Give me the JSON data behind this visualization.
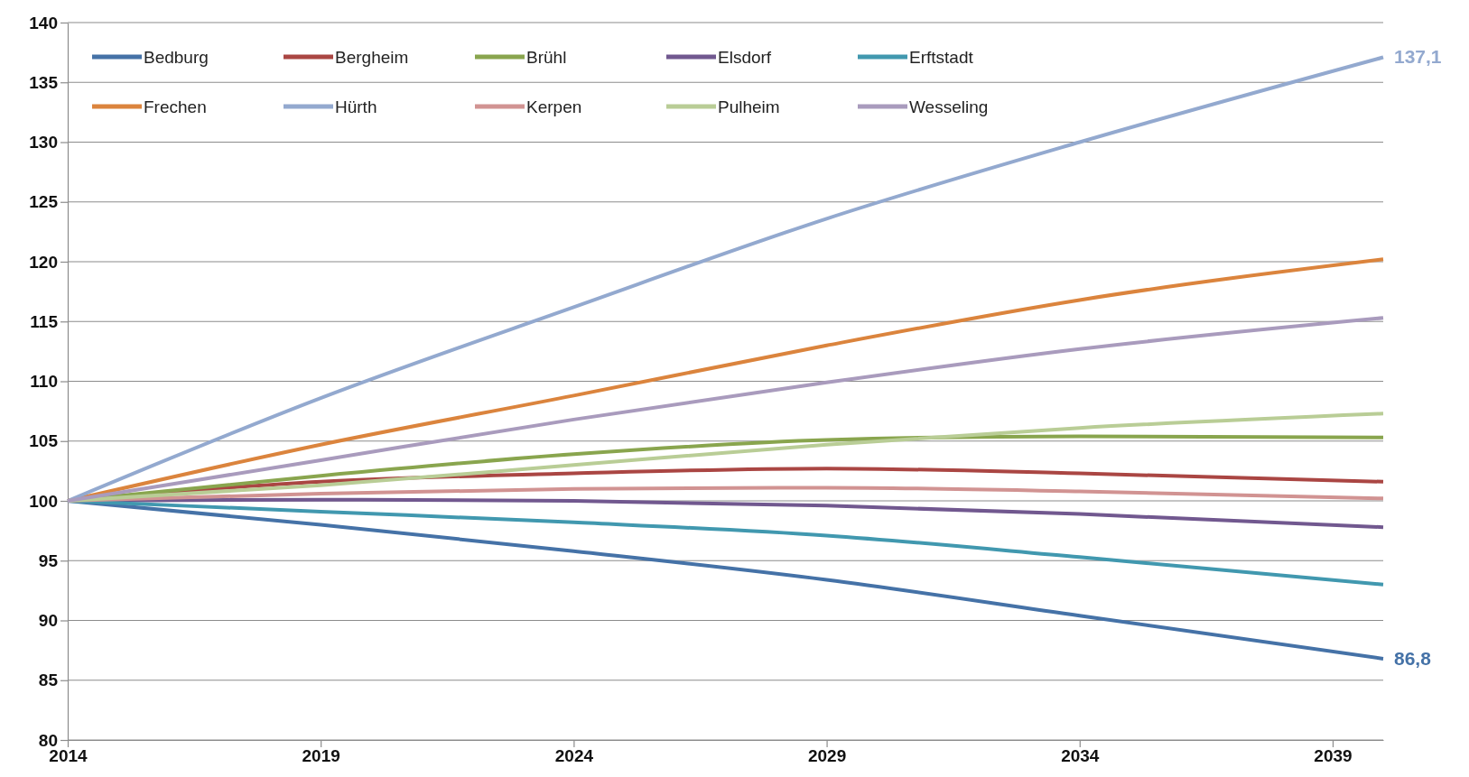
{
  "chart_data": {
    "type": "line",
    "xlim": [
      2014,
      2040
    ],
    "xticks": [
      2014,
      2019,
      2024,
      2029,
      2034,
      2039
    ],
    "ylim": [
      80,
      140
    ],
    "yticks": [
      80,
      85,
      90,
      95,
      100,
      105,
      110,
      115,
      120,
      125,
      130,
      135,
      140
    ],
    "grid": "y",
    "legend": "top left",
    "marker": "none",
    "line_style": "solid",
    "x": [
      2014,
      2019,
      2024,
      2029,
      2034,
      2040
    ],
    "series": [
      {
        "name": "Bedburg",
        "color": "#4572a7",
        "values": [
          100,
          98,
          95.8,
          93.4,
          90.4,
          86.8
        ]
      },
      {
        "name": "Bergheim",
        "color": "#aa4643",
        "values": [
          100,
          101.6,
          102.3,
          102.7,
          102.3,
          101.6
        ]
      },
      {
        "name": "Brühl",
        "color": "#89a54e",
        "values": [
          100,
          102.1,
          103.9,
          105.1,
          105.4,
          105.3
        ]
      },
      {
        "name": "Elsdorf",
        "color": "#71588f",
        "values": [
          100,
          100.1,
          100,
          99.6,
          98.9,
          97.8
        ]
      },
      {
        "name": "Erftstadt",
        "color": "#4198af",
        "values": [
          100,
          99.1,
          98.2,
          97.1,
          95.3,
          93
        ]
      },
      {
        "name": "Frechen",
        "color": "#db843d",
        "values": [
          100,
          104.7,
          108.8,
          113,
          116.8,
          120.2
        ]
      },
      {
        "name": "Hürth",
        "color": "#93a9cf",
        "values": [
          100,
          108.6,
          116.2,
          123.6,
          130,
          137.1
        ]
      },
      {
        "name": "Kerpen",
        "color": "#d19392",
        "values": [
          100,
          100.6,
          101,
          101.1,
          100.8,
          100.2
        ]
      },
      {
        "name": "Pulheim",
        "color": "#b9cd96",
        "values": [
          100,
          101.3,
          103,
          104.7,
          106.1,
          107.3
        ]
      },
      {
        "name": "Wesseling",
        "color": "#a99bbd",
        "values": [
          100,
          103.4,
          106.8,
          109.9,
          112.7,
          115.3
        ]
      }
    ],
    "annotations": [
      {
        "text": "137,1",
        "x": 2040,
        "y": 137.1
      },
      {
        "text": "86,8",
        "x": 2040,
        "y": 86.8
      }
    ]
  }
}
